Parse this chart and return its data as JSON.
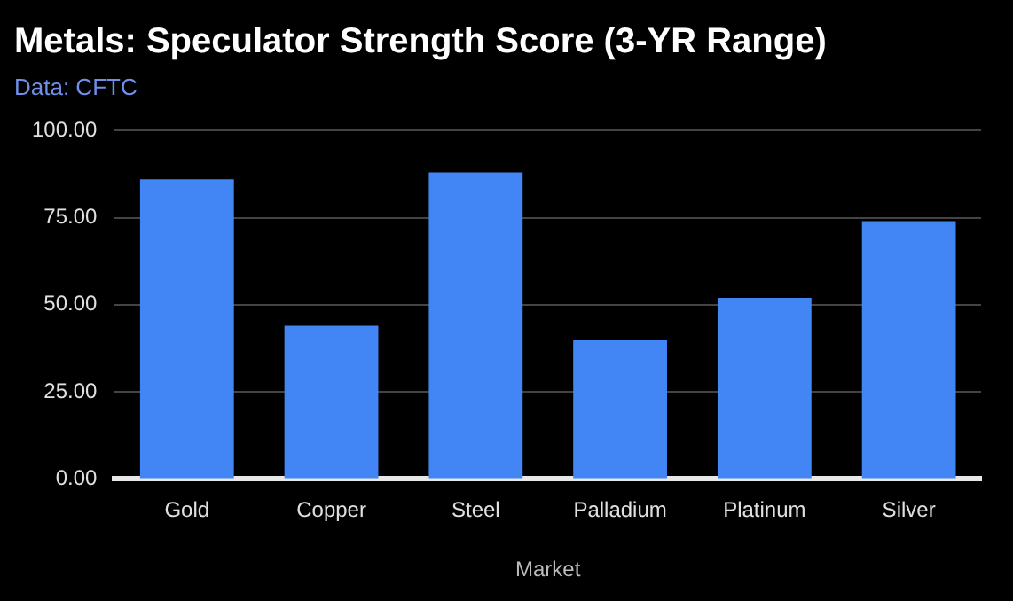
{
  "chart_data": {
    "type": "bar",
    "title": "Metals: Speculator Strength Score (3-YR Range)",
    "subtitle": "Data: CFTC",
    "xlabel": "Market",
    "categories": [
      "Gold",
      "Copper",
      "Steel",
      "Palladium",
      "Platinum",
      "Silver"
    ],
    "values": [
      86,
      44,
      88,
      40,
      52,
      74
    ],
    "color": "#4285f4",
    "ylim": [
      0,
      100
    ],
    "yticks": [
      {
        "value": 0,
        "label": "0.00"
      },
      {
        "value": 25,
        "label": "25.00"
      },
      {
        "value": 50,
        "label": "50.00"
      },
      {
        "value": 75,
        "label": "75.00"
      },
      {
        "value": 100,
        "label": "100.00"
      }
    ],
    "grid": "y"
  }
}
